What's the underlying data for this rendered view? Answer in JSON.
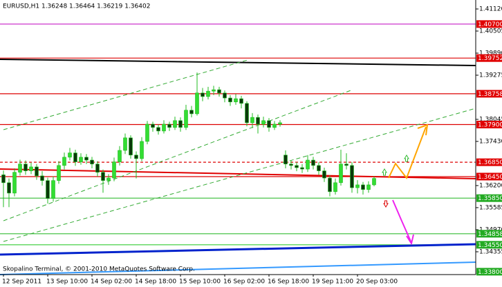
{
  "chart_data": {
    "type": "candlestick",
    "title": "EURUSD,H1  1.36248 1.36464 1.36219 1.36402",
    "annotation": "Skopalino Terminal, © 2001-2010 MetaQuotes Software Corp.",
    "categories": [
      "12 Sep 2011",
      null,
      null,
      null,
      null,
      null,
      null,
      null,
      "13 Sep 10:00",
      null,
      null,
      null,
      null,
      null,
      null,
      null,
      "14 Sep 02:00",
      null,
      null,
      null,
      null,
      null,
      null,
      null,
      "14 Sep 18:00",
      null,
      null,
      null,
      null,
      null,
      null,
      null,
      "15 Sep 10:00",
      null,
      null,
      null,
      null,
      null,
      null,
      null,
      "16 Sep 02:00",
      null,
      null,
      null,
      null,
      null,
      null,
      null,
      "16 Sep 18:00",
      null,
      null,
      null,
      null,
      null,
      null,
      null,
      "19 Sep 11:00",
      null,
      null,
      null,
      null,
      null,
      null,
      null,
      "20 Sep 03:00",
      null,
      null,
      null
    ],
    "open": [
      1.365,
      1.3628,
      1.3599,
      1.3657,
      1.368,
      1.3661,
      1.3672,
      1.3647,
      1.3634,
      1.3584,
      1.3634,
      1.3676,
      1.3699,
      1.3711,
      1.3686,
      1.3699,
      1.3691,
      1.368,
      1.3657,
      1.3634,
      1.3641,
      1.3686,
      1.3718,
      1.3753,
      1.3705,
      1.3695,
      1.3743,
      1.3791,
      1.3782,
      1.3772,
      1.3791,
      1.3782,
      1.3801,
      1.3782,
      1.383,
      1.382,
      1.3878,
      1.3868,
      1.3883,
      1.3887,
      1.3878,
      1.3864,
      1.3853,
      1.3862,
      1.3849,
      1.3795,
      1.381,
      1.3791,
      1.3801,
      1.3782,
      1.3791,
      1.3705,
      1.368,
      1.3676,
      1.367,
      1.3666,
      1.3691,
      1.3676,
      1.3661,
      1.3641,
      1.3603,
      1.3628,
      1.368,
      1.3676,
      1.3614,
      1.3622,
      1.3609,
      1.3622
    ],
    "high": [
      1.3662,
      1.364,
      1.3668,
      1.3692,
      1.369,
      1.3684,
      1.368,
      1.366,
      1.3642,
      1.3646,
      1.3688,
      1.3712,
      1.3725,
      1.372,
      1.371,
      1.3708,
      1.37,
      1.3688,
      1.3665,
      1.3652,
      1.3698,
      1.373,
      1.3765,
      1.376,
      1.3715,
      1.3755,
      1.38,
      1.3798,
      1.379,
      1.3802,
      1.3798,
      1.3812,
      1.381,
      1.3845,
      1.3842,
      1.3935,
      1.3892,
      1.3895,
      1.3898,
      1.3895,
      1.3885,
      1.3872,
      1.3875,
      1.387,
      1.3855,
      1.3822,
      1.3818,
      1.3812,
      1.3808,
      1.38,
      1.3802,
      1.3718,
      1.369,
      1.3685,
      1.368,
      1.3705,
      1.37,
      1.3685,
      1.367,
      1.3648,
      1.364,
      1.372,
      1.371,
      1.3685,
      1.3635,
      1.363,
      1.3632,
      1.3646
    ],
    "low": [
      1.356,
      1.356,
      1.359,
      1.3648,
      1.365,
      1.3652,
      1.3636,
      1.362,
      1.357,
      1.3575,
      1.3625,
      1.3665,
      1.369,
      1.3675,
      1.3678,
      1.368,
      1.3668,
      1.3645,
      1.36,
      1.3622,
      1.3632,
      1.3676,
      1.3708,
      1.3695,
      1.364,
      1.3688,
      1.3735,
      1.377,
      1.3762,
      1.3765,
      1.3772,
      1.3775,
      1.377,
      1.3775,
      1.381,
      1.3815,
      1.3855,
      1.386,
      1.3872,
      1.3868,
      1.3852,
      1.3842,
      1.3845,
      1.3835,
      1.3785,
      1.378,
      1.3765,
      1.3782,
      1.377,
      1.3775,
      1.3784,
      1.3668,
      1.3665,
      1.366,
      1.3655,
      1.3658,
      1.3665,
      1.365,
      1.363,
      1.359,
      1.3595,
      1.362,
      1.3665,
      1.36,
      1.3598,
      1.3595,
      1.36,
      1.3618
    ],
    "close": [
      1.3628,
      1.3599,
      1.3657,
      1.368,
      1.3661,
      1.3672,
      1.3647,
      1.3634,
      1.3584,
      1.3634,
      1.3676,
      1.3699,
      1.3711,
      1.3686,
      1.3699,
      1.3691,
      1.368,
      1.3657,
      1.3634,
      1.3641,
      1.3686,
      1.3718,
      1.3753,
      1.3705,
      1.3695,
      1.3743,
      1.3791,
      1.3782,
      1.3772,
      1.3791,
      1.3782,
      1.3801,
      1.3782,
      1.383,
      1.382,
      1.3878,
      1.3868,
      1.3883,
      1.3887,
      1.3878,
      1.3864,
      1.3853,
      1.3862,
      1.3849,
      1.3795,
      1.381,
      1.3791,
      1.3801,
      1.3782,
      1.3791,
      1.3795,
      1.368,
      1.3676,
      1.367,
      1.3666,
      1.3691,
      1.3676,
      1.3661,
      1.3641,
      1.3603,
      1.3628,
      1.368,
      1.3676,
      1.3614,
      1.3622,
      1.3609,
      1.3622,
      1.364
    ],
    "up_color": "#33dd33",
    "down_color": "#0a3a0a",
    "wick_color": "#22bb22",
    "ylim": [
      1.3372,
      1.4137
    ],
    "yticks": [
      {
        "value": 1.4112,
        "label": "1.41120"
      },
      {
        "value": 1.40505,
        "label": "1.40505"
      },
      {
        "value": 1.3989,
        "label": "1.39890"
      },
      {
        "value": 1.39275,
        "label": "1.39275"
      },
      {
        "value": 1.38045,
        "label": "1.38045"
      },
      {
        "value": 1.3743,
        "label": "1.37430"
      },
      {
        "value": 1.362,
        "label": "1.36200"
      },
      {
        "value": 1.35585,
        "label": "1.35585"
      },
      {
        "value": 1.3497,
        "label": "1.34970"
      },
      {
        "value": 1.34355,
        "label": "1.34355"
      }
    ],
    "levels": [
      {
        "value": 1.407,
        "label": "1.40700",
        "color": "#cc33cc",
        "box_color": "#e00000"
      },
      {
        "value": 1.39752,
        "label": "1.39752",
        "color": "#dd0000",
        "box_color": "#e00000"
      },
      {
        "value": 1.38758,
        "label": "1.38758",
        "color": "#dd0000",
        "box_color": "#e00000"
      },
      {
        "value": 1.379,
        "label": "1.37900",
        "color": "#dd0000",
        "box_color": "#e00000"
      },
      {
        "value": 1.3685,
        "label": "1.36850",
        "color": "#dd0000",
        "box_color": "#e00000",
        "dashed": true
      },
      {
        "value": 1.3645,
        "label": "1.36450",
        "color": "#dd0000",
        "box_color": "#e00000"
      },
      {
        "value": 1.3585,
        "label": "1.35850",
        "color": "#33bb33",
        "box_color": "#22aa22"
      },
      {
        "value": 1.34858,
        "label": "1.34858",
        "color": "#33bb33",
        "box_color": "#22aa22"
      },
      {
        "value": 1.3455,
        "label": "1.34550",
        "color": "#33cc33",
        "box_color": "#22aa22"
      },
      {
        "value": 1.338,
        "label": "1.33800",
        "box_color": "#22aa22"
      }
    ]
  }
}
